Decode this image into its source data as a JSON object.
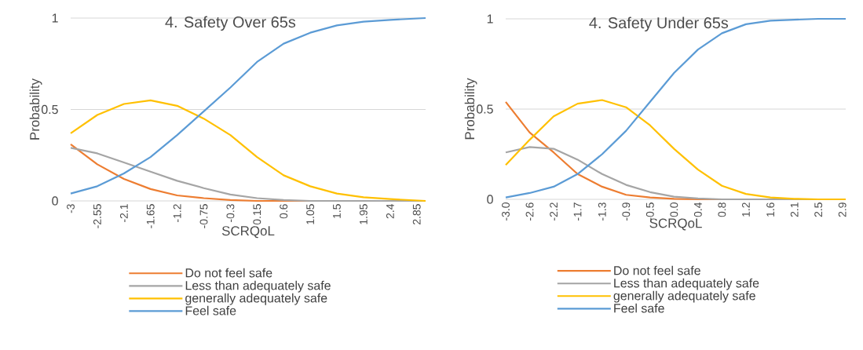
{
  "chart_data": [
    {
      "type": "line",
      "title": "4. Safety Over 65s",
      "xlabel": "SCRQoL",
      "ylabel": "Probability",
      "x": [
        -3,
        -2.55,
        -2.1,
        -1.65,
        -1.2,
        -0.75,
        -0.3,
        0.15,
        0.6,
        1.05,
        1.5,
        1.95,
        2.4,
        3.0
      ],
      "series": [
        {
          "name": "Do not feel safe",
          "color": "#ed7d31",
          "values": [
            0.31,
            0.2,
            0.12,
            0.065,
            0.03,
            0.015,
            0.005,
            0,
            0,
            0,
            null,
            null,
            null,
            null
          ]
        },
        {
          "name": "Less than adequately safe",
          "color": "#a5a5a5",
          "values": [
            0.29,
            0.26,
            0.21,
            0.16,
            0.11,
            0.07,
            0.035,
            0.015,
            0.005,
            0,
            0,
            0,
            0,
            0
          ]
        },
        {
          "name": "generally adequately safe",
          "color": "#ffc000",
          "values": [
            0.37,
            0.47,
            0.53,
            0.55,
            0.52,
            0.45,
            0.36,
            0.24,
            0.14,
            0.08,
            0.04,
            0.02,
            0.01,
            0
          ]
        },
        {
          "name": "Feel safe",
          "color": "#5b9bd5",
          "values": [
            0.04,
            0.08,
            0.15,
            0.24,
            0.36,
            0.49,
            0.62,
            0.76,
            0.86,
            0.92,
            0.96,
            0.98,
            0.99,
            1
          ]
        }
      ],
      "xlim": [
        -3,
        3.0
      ],
      "xticks": [
        -3,
        -2.55,
        -2.1,
        -1.65,
        -1.2,
        -0.75,
        -0.3,
        0.15,
        0.6,
        1.05,
        1.5,
        1.95,
        2.4,
        2.85
      ],
      "ylim": [
        0,
        1
      ],
      "yticks": [
        0,
        0.5,
        1
      ],
      "grid": "y",
      "legend": "bottom",
      "marker": "none",
      "line_style": "solid"
    },
    {
      "type": "line",
      "title": "4. Safety Under 65s",
      "xlabel": "SCRQoL",
      "ylabel": "Probability",
      "x": [
        -3.0,
        -2.58,
        -2.16,
        -1.74,
        -1.31,
        -0.89,
        -0.47,
        -0.05,
        0.37,
        0.79,
        1.21,
        1.64,
        2.06,
        2.48,
        2.96
      ],
      "series": [
        {
          "name": "Do not feel safe",
          "color": "#ed7d31",
          "values": [
            0.54,
            0.37,
            0.26,
            0.14,
            0.07,
            0.025,
            0.01,
            0.003,
            0,
            0,
            null,
            null,
            null,
            null,
            null
          ]
        },
        {
          "name": "Less than adequately safe",
          "color": "#a5a5a5",
          "values": [
            0.26,
            0.29,
            0.28,
            0.22,
            0.14,
            0.08,
            0.04,
            0.015,
            0.005,
            0,
            0,
            0,
            0,
            0,
            0
          ]
        },
        {
          "name": "generally adequately safe",
          "color": "#ffc000",
          "values": [
            0.19,
            0.33,
            0.46,
            0.53,
            0.55,
            0.51,
            0.41,
            0.28,
            0.165,
            0.075,
            0.03,
            0.01,
            0.003,
            0,
            0
          ]
        },
        {
          "name": "Feel safe",
          "color": "#5b9bd5",
          "values": [
            0.01,
            0.035,
            0.07,
            0.14,
            0.25,
            0.38,
            0.54,
            0.7,
            0.83,
            0.92,
            0.97,
            0.99,
            0.995,
            1,
            1
          ]
        }
      ],
      "xlim": [
        -3.0,
        2.96
      ],
      "xticks": [
        {
          "value": -3.0,
          "label": "-3.0"
        },
        {
          "value": -2.58,
          "label": "-2.6"
        },
        {
          "value": -2.16,
          "label": "-2.2"
        },
        {
          "value": -1.74,
          "label": "-1.7"
        },
        {
          "value": -1.31,
          "label": "-1.3"
        },
        {
          "value": -0.89,
          "label": "-0.9"
        },
        {
          "value": -0.47,
          "label": "-0.5"
        },
        {
          "value": -0.05,
          "label": "0.0"
        },
        {
          "value": 0.37,
          "label": "0.4"
        },
        {
          "value": 0.79,
          "label": "0.8"
        },
        {
          "value": 1.21,
          "label": "1.2"
        },
        {
          "value": 1.64,
          "label": "1.6"
        },
        {
          "value": 2.06,
          "label": "2.1"
        },
        {
          "value": 2.48,
          "label": "2.5"
        },
        {
          "value": 2.9,
          "label": "2.9"
        }
      ],
      "ylim": [
        0,
        1
      ],
      "yticks": [
        0,
        0.5,
        1
      ],
      "grid": "y",
      "legend": "bottom",
      "marker": "none",
      "line_style": "solid"
    }
  ]
}
